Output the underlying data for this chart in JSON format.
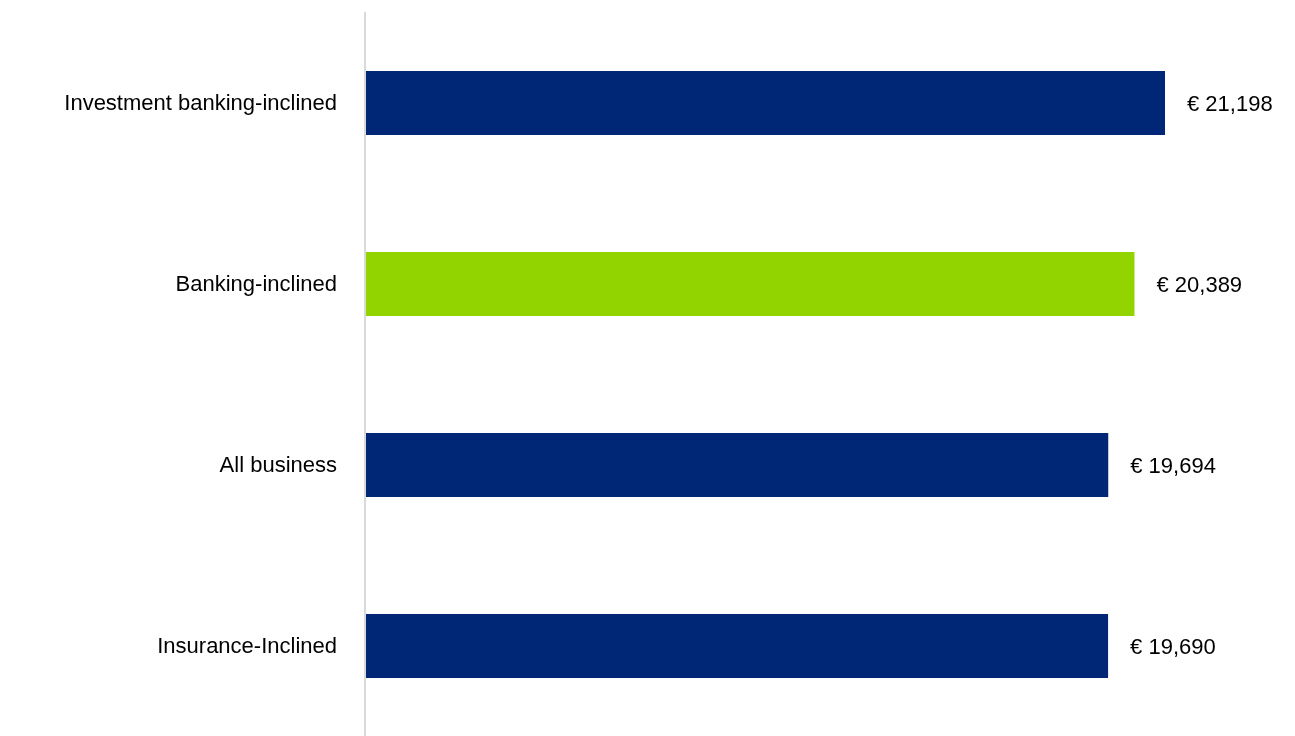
{
  "chart_data": {
    "type": "bar",
    "orientation": "horizontal",
    "categories": [
      "Investment banking-inclined",
      "Banking-inclined",
      "All business",
      "Insurance-Inclined"
    ],
    "values": [
      21198,
      20389,
      19694,
      19690
    ],
    "colors": [
      "#002776",
      "#92d400",
      "#002776",
      "#002776"
    ],
    "value_labels": [
      "€ 21,198",
      "€ 20,389",
      "€ 19,694",
      "€ 19,690"
    ]
  }
}
